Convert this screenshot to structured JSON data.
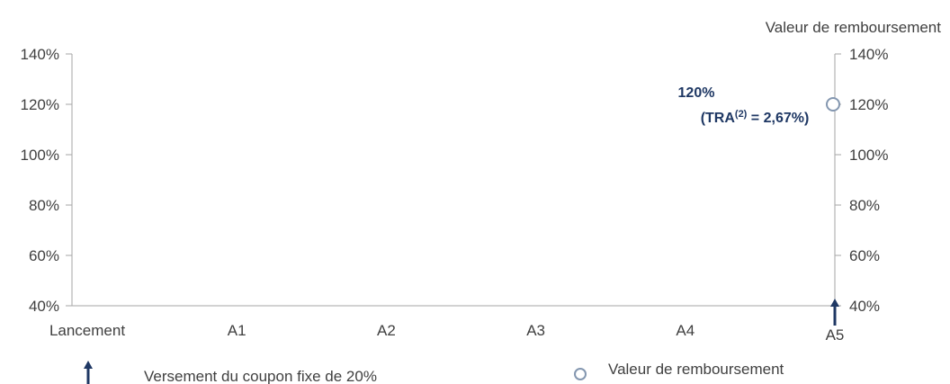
{
  "chart_data": {
    "type": "scatter",
    "categories": [
      "Lancement",
      "A1",
      "A2",
      "A3",
      "A4",
      "A5"
    ],
    "y_left": {
      "ticks": [
        "40%",
        "60%",
        "80%",
        "100%",
        "120%",
        "140%"
      ],
      "ylim": [
        40,
        140
      ]
    },
    "y_right": {
      "title": "Valeur de remboursement",
      "ticks": [
        "40%",
        "60%",
        "80%",
        "100%",
        "120%",
        "140%"
      ],
      "ylim": [
        40,
        140
      ]
    },
    "series": [
      {
        "name": "Versement du coupon fixe de 20%",
        "marker": "arrow",
        "points": [
          {
            "x": "A5",
            "y": 40
          }
        ]
      },
      {
        "name": "Valeur de remboursement",
        "marker": "circle",
        "points": [
          {
            "x": "A5",
            "y": 120
          }
        ]
      }
    ],
    "annotation": {
      "line1": "120%",
      "line2_prefix": "(TRA",
      "line2_sup": "(2)",
      "line2_suffix": " = 2,67%)"
    },
    "legend_position": "bottom",
    "grid": false
  },
  "colors": {
    "axis": "#a6a6a6",
    "arrow": "#1f3864",
    "circle": "#8497b0",
    "annotation": "#1f3864",
    "text": "#404040"
  }
}
